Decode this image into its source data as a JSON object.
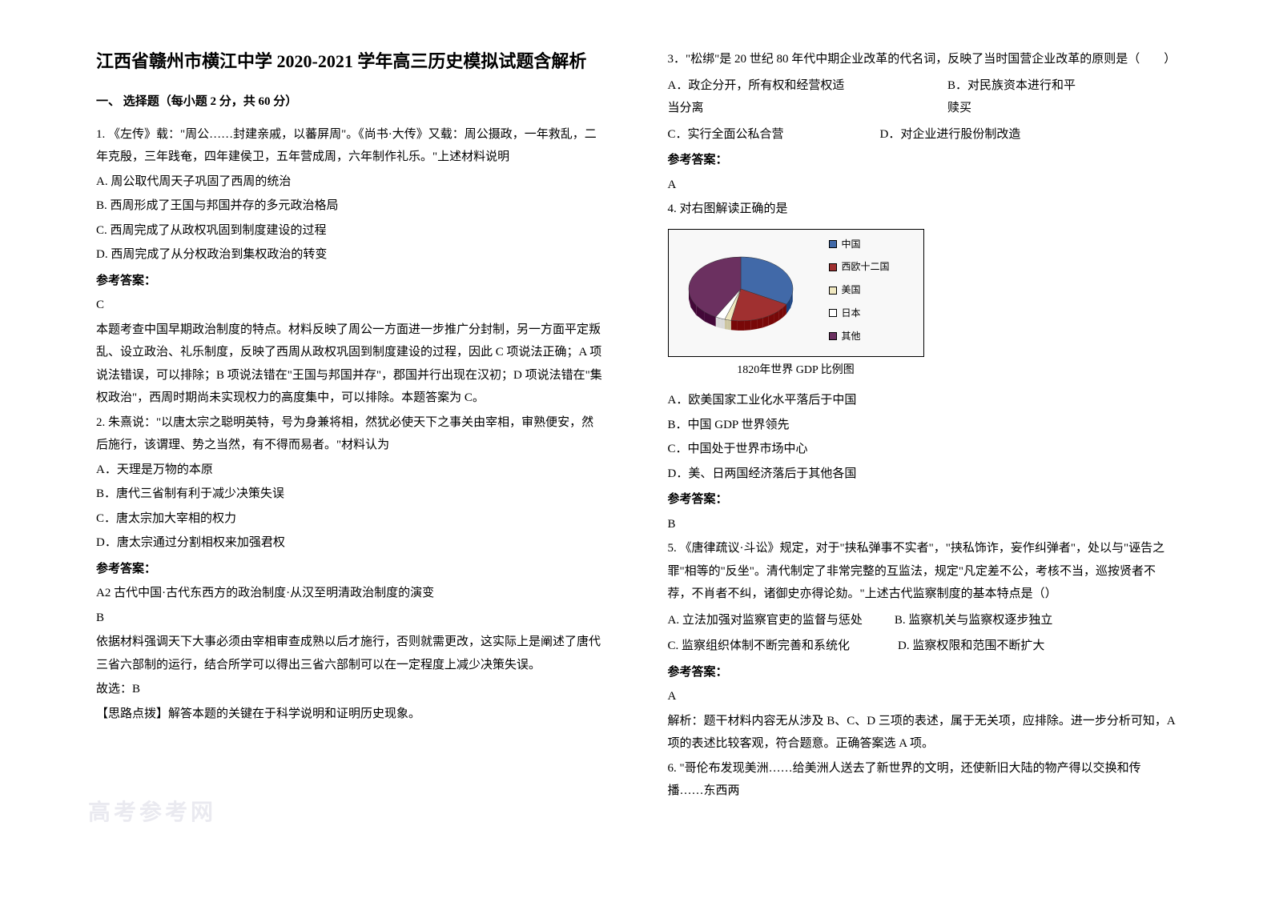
{
  "title": "江西省赣州市横江中学 2020-2021 学年高三历史模拟试题含解析",
  "section_header": "一、 选择题（每小题 2 分，共 60 分）",
  "q1": {
    "stem": "1. 《左传》载：\"周公……封建亲戚，以蕃屏周\"。《尚书·大传》又载：周公摄政，一年救乱，二年克殷，三年践奄，四年建侯卫，五年营成周，六年制作礼乐。\"上述材料说明",
    "optA": "A. 周公取代周天子巩固了西周的统治",
    "optB": "B. 西周形成了王国与邦国并存的多元政治格局",
    "optC": "C. 西周完成了从政权巩固到制度建设的过程",
    "optD": "D. 西周完成了从分权政治到集权政治的转变",
    "ans_label": "参考答案：",
    "ans": "C",
    "expl": "本题考查中国早期政治制度的特点。材料反映了周公一方面进一步推广分封制，另一方面平定叛乱、设立政治、礼乐制度，反映了西周从政权巩固到制度建设的过程，因此 C 项说法正确；A 项说法错误，可以排除；B 项说法错在\"王国与邦国并存\"，郡国并行出现在汉初；D 项说法错在\"集权政治\"，西周时期尚未实现权力的高度集中，可以排除。本题答案为 C。"
  },
  "q2": {
    "stem": "2. 朱熹说：\"以唐太宗之聪明英特，号为身兼将相，然犹必使天下之事关由宰相，审熟便安，然后施行，该谓理、势之当然，有不得而易者。\"材料认为",
    "optA": "A．天理是万物的本原",
    "optB": "B．唐代三省制有利于减少决策失误",
    "optC": "C．唐太宗加大宰相的权力",
    "optD": "D．唐太宗通过分割相权来加强君权",
    "ans_label": "参考答案：",
    "ans_line": "A2 古代中国·古代东西方的政治制度·从汉至明清政治制度的演变",
    "ans": "B",
    "expl1": "依据材料强调天下大事必须由宰相审查成熟以后才施行，否则就需更改，这实际上是阐述了唐代三省六部制的运行，结合所学可以得出三省六部制可以在一定程度上减少决策失误。",
    "expl2": "故选：B",
    "expl3": "【思路点拨】解答本题的关键在于科学说明和证明历史现象。"
  },
  "q3": {
    "stem": "3．\"松绑\"是 20 世纪 80 年代中期企业改革的代名词，反映了当时国营企业改革的原则是（　　）",
    "optA": "A．政企分开，所有权和经营权适当分离",
    "optB": "B．对民族资本进行和平赎买",
    "optC": "C．实行全面公私合营",
    "optD": "D．对企业进行股份制改造",
    "ans_label": "参考答案：",
    "ans": "A"
  },
  "q4": {
    "stem": "4. 对右图解读正确的是",
    "chart": {
      "type": "pie",
      "caption": "1820年世界 GDP 比例图",
      "slices": [
        {
          "label": "中国",
          "color": "#4169a8",
          "value": 33
        },
        {
          "label": "西欧十二国",
          "color": "#a03030",
          "value": 20
        },
        {
          "label": "美国",
          "color": "#f0e8c0",
          "value": 2
        },
        {
          "label": "日本",
          "color": "#ffffff",
          "value": 3
        },
        {
          "label": "其他",
          "color": "#6b3060",
          "value": 42
        }
      ],
      "legend_prefix": "■",
      "box_bg": "#f8f8f8",
      "border_color": "#000000"
    },
    "optA": "A．欧美国家工业化水平落后于中国",
    "optB": "B．中国 GDP 世界领先",
    "optC": "C．中国处于世界市场中心",
    "optD": "D．美、日两国经济落后于其他各国",
    "ans_label": "参考答案：",
    "ans": "B"
  },
  "q5": {
    "stem": "5. 《唐律疏议·斗讼》规定，对于\"挟私弹事不实者\"，\"挟私饰诈，妄作纠弹者\"，处以与\"诬告之罪\"相等的\"反坐\"。清代制定了非常完整的互监法，规定\"凡定差不公，考核不当，巡按贤者不荐，不肖者不纠，诸御史亦得论劾。\"上述古代监察制度的基本特点是（）",
    "optA": "A. 立法加强对监察官吏的监督与惩处",
    "optB": "B. 监察机关与监察权逐步独立",
    "optC": "C. 监察组织体制不断完善和系统化",
    "optD": "D. 监察权限和范围不断扩大",
    "ans_label": "参考答案：",
    "ans": "A",
    "expl": "解析：题干材料内容无从涉及 B、C、D 三项的表述，属于无关项，应排除。进一步分析可知，A 项的表述比较客观，符合题意。正确答案选 A 项。"
  },
  "q6": {
    "stem": "6. \"哥伦布发现美洲……给美洲人送去了新世界的文明，还使新旧大陆的物产得以交换和传播……东西两"
  },
  "watermark": "高考参考网"
}
